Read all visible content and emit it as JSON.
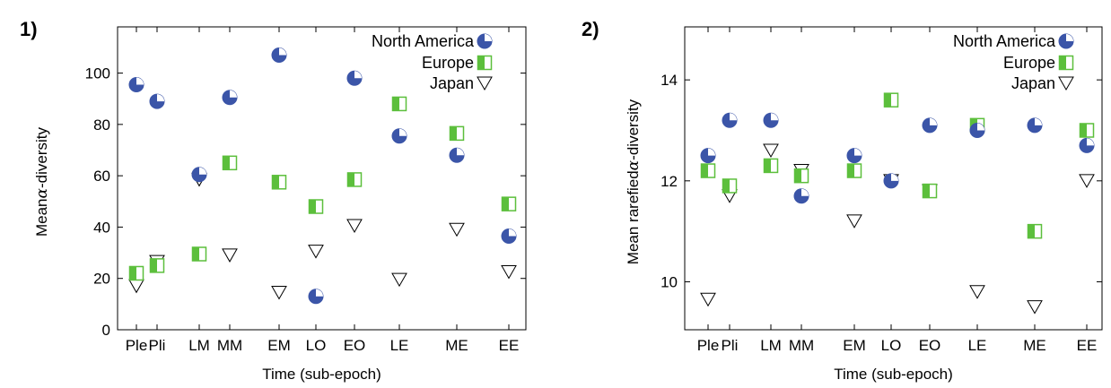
{
  "colors": {
    "north_america": "#3b55a8",
    "europe": "#5cbf3c",
    "japan": "#ffffff",
    "frame": "#000000"
  },
  "chart_data": [
    {
      "type": "scatter",
      "panel_label": "1)",
      "xlabel": "Time (sub-epoch)",
      "ylabel": "Mean α-diversity",
      "ylabel_pre": "Mean",
      "ylabel_sym": "α",
      "ylabel_post": "-diversity",
      "ylim": [
        0,
        118
      ],
      "yticks": [
        0,
        20,
        40,
        60,
        80,
        100
      ],
      "categories": [
        "Ple",
        "Pli",
        "LM",
        "MM",
        "EM",
        "LO",
        "EO",
        "LE",
        "ME",
        "EE"
      ],
      "legend": "top-right",
      "series": [
        {
          "name": "North America",
          "marker": "quarter-circle",
          "values": [
            95.5,
            89,
            60.5,
            90.5,
            107,
            13,
            98,
            75.5,
            68,
            36.5
          ]
        },
        {
          "name": "Europe",
          "marker": "half-square",
          "values": [
            22,
            25,
            29.5,
            65,
            57.5,
            48,
            58.5,
            88,
            76.5,
            49
          ]
        },
        {
          "name": "Japan",
          "marker": "down-triangle",
          "values": [
            17,
            26.5,
            58.5,
            29,
            14.5,
            30.5,
            40.5,
            19.5,
            39,
            22.5
          ]
        }
      ]
    },
    {
      "type": "scatter",
      "panel_label": "2)",
      "xlabel": "Time (sub-epoch)",
      "ylabel": "Mean rarefiedα-diversity",
      "ylabel_pre": "Mean rarefied",
      "ylabel_sym": "α",
      "ylabel_post": "-diversity",
      "ylim": [
        9.05,
        15.05
      ],
      "yticks": [
        10,
        12,
        14
      ],
      "categories": [
        "Ple",
        "Pli",
        "LM",
        "MM",
        "EM",
        "LO",
        "EO",
        "LE",
        "ME",
        "EE"
      ],
      "legend": "top-right",
      "series": [
        {
          "name": "North America",
          "marker": "quarter-circle",
          "values": [
            12.5,
            13.2,
            13.2,
            11.7,
            12.5,
            12.0,
            13.1,
            13.0,
            13.1,
            12.7
          ]
        },
        {
          "name": "Europe",
          "marker": "half-square",
          "values": [
            12.2,
            11.9,
            12.3,
            12.1,
            12.2,
            13.6,
            11.8,
            13.1,
            11.0,
            13.0
          ]
        },
        {
          "name": "Japan",
          "marker": "down-triangle",
          "values": [
            9.65,
            11.7,
            12.6,
            12.2,
            11.2,
            12.0,
            11.8,
            9.8,
            9.5,
            12.0
          ]
        }
      ]
    }
  ]
}
